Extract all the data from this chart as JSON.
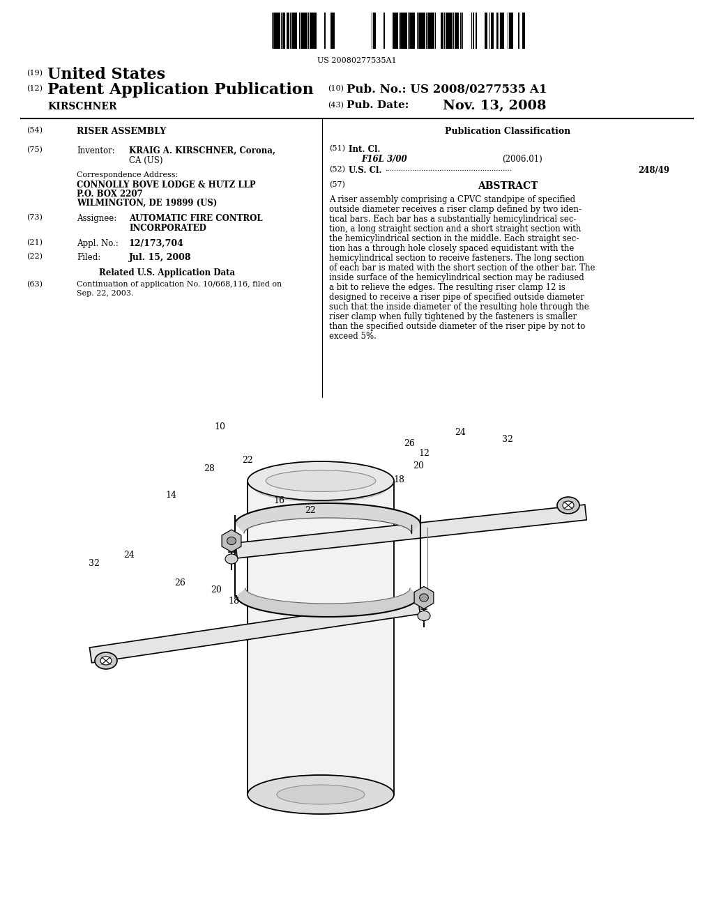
{
  "background_color": "#ffffff",
  "barcode_text": "US 20080277535A1",
  "patent_number_label": "(19)",
  "patent_number_text": "United States",
  "pub_type_label": "(12)",
  "pub_type_text": "Patent Application Publication",
  "pub_no_label": "(10)",
  "pub_no_text": "Pub. No.:",
  "pub_no_value": "US 2008/0277535 A1",
  "inventor_name": "KIRSCHNER",
  "pub_date_label": "(43)",
  "pub_date_text": "Pub. Date:",
  "pub_date_value": "Nov. 13, 2008",
  "field54_label": "(54)",
  "field54_text": "RISER ASSEMBLY",
  "field75_label": "(75)",
  "field75_key": "Inventor:",
  "field75_val1": "KRAIG A. KIRSCHNER, Corona,",
  "field75_val2": "CA (US)",
  "correspondence_header": "Correspondence Address:",
  "corr_line1": "CONNOLLY BOVE LODGE & HUTZ LLP",
  "corr_line2": "P.O. BOX 2207",
  "corr_line3": "WILMINGTON, DE 19899 (US)",
  "field73_label": "(73)",
  "field73_key": "Assignee:",
  "field73_val1": "AUTOMATIC FIRE CONTROL",
  "field73_val2": "INCORPORATED",
  "field21_label": "(21)",
  "field21_key": "Appl. No.:",
  "field21_value": "12/173,704",
  "field22_label": "(22)",
  "field22_key": "Filed:",
  "field22_value": "Jul. 15, 2008",
  "related_header": "Related U.S. Application Data",
  "field63_label": "(63)",
  "field63_val1": "Continuation of application No. 10/668,116, filed on",
  "field63_val2": "Sep. 22, 2003.",
  "pub_class_header": "Publication Classification",
  "field51_label": "(51)",
  "field51_key": "Int. Cl.",
  "field51_class": "F16L 3/00",
  "field51_year": "(2006.01)",
  "field52_label": "(52)",
  "field52_key": "U.S. Cl.",
  "field52_dots": "........................................................",
  "field52_value": "248/49",
  "field57_label": "(57)",
  "abstract_header": "ABSTRACT",
  "abstract_lines": [
    "A riser assembly comprising a CPVC standpipe of specified",
    "outside diameter receives a riser clamp defined by two iden-",
    "tical bars. Each bar has a substantially hemicylindrical sec-",
    "tion, a long straight section and a short straight section with",
    "the hemicylindrical section in the middle. Each straight sec-",
    "tion has a through hole closely spaced equidistant with the",
    "hemicylindrical section to receive fasteners. The long section",
    "of each bar is mated with the short section of the other bar. The",
    "inside surface of the hemicylindrical section may be radiused",
    "a bit to relieve the edges. The resulting riser clamp 12 is",
    "designed to receive a riser pipe of specified outside diameter",
    "such that the inside diameter of the resulting hole through the",
    "riser clamp when fully tightened by the fasteners is smaller",
    "than the specified outside diameter of the riser pipe by not to",
    "exceed 5%."
  ]
}
